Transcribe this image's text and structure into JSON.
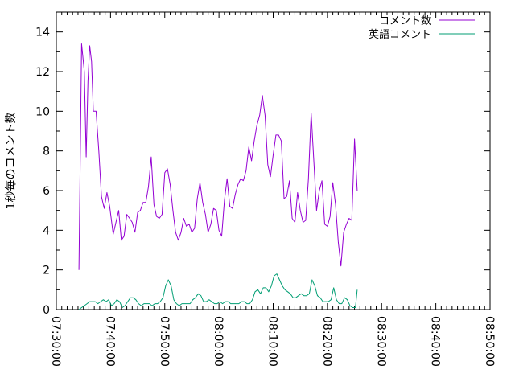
{
  "chart_data": {
    "type": "line",
    "ylabel": "1秒毎のコメント数",
    "xlabel": "",
    "ylim": [
      0,
      15
    ],
    "y_ticks": [
      0,
      2,
      4,
      6,
      8,
      10,
      12,
      14
    ],
    "x_range": [
      "07:30:00",
      "08:50:00"
    ],
    "x_ticks": [
      "07:30:00",
      "07:40:00",
      "07:50:00",
      "08:00:00",
      "08:10:00",
      "08:20:00",
      "08:30:00",
      "08:40:00",
      "08:50:00"
    ],
    "legend_position": "top-right",
    "grid": false,
    "series": [
      {
        "name": "コメント数",
        "color": "#9400d3",
        "points": [
          [
            "07:34:10",
            2.0
          ],
          [
            "07:34:40",
            13.4
          ],
          [
            "07:35:10",
            12.0
          ],
          [
            "07:35:30",
            7.7
          ],
          [
            "07:35:50",
            11.5
          ],
          [
            "07:36:10",
            13.3
          ],
          [
            "07:36:30",
            12.5
          ],
          [
            "07:36:50",
            10.0
          ],
          [
            "07:37:20",
            10.0
          ],
          [
            "07:37:50",
            8.0
          ],
          [
            "07:38:20",
            5.7
          ],
          [
            "07:38:50",
            5.1
          ],
          [
            "07:39:20",
            5.9
          ],
          [
            "07:39:50",
            5.2
          ],
          [
            "07:40:30",
            3.8
          ],
          [
            "07:41:00",
            4.4
          ],
          [
            "07:41:30",
            5.0
          ],
          [
            "07:42:00",
            3.5
          ],
          [
            "07:42:30",
            3.7
          ],
          [
            "07:43:00",
            4.8
          ],
          [
            "07:43:30",
            4.6
          ],
          [
            "07:44:00",
            4.4
          ],
          [
            "07:44:30",
            3.9
          ],
          [
            "07:45:00",
            4.9
          ],
          [
            "07:45:30",
            5.0
          ],
          [
            "07:46:00",
            5.4
          ],
          [
            "07:46:30",
            5.4
          ],
          [
            "07:47:00",
            6.2
          ],
          [
            "07:47:30",
            7.7
          ],
          [
            "07:48:00",
            5.3
          ],
          [
            "07:48:30",
            4.7
          ],
          [
            "07:49:00",
            4.6
          ],
          [
            "07:49:30",
            4.8
          ],
          [
            "07:50:00",
            6.9
          ],
          [
            "07:50:30",
            7.1
          ],
          [
            "07:51:00",
            6.3
          ],
          [
            "07:51:30",
            5.0
          ],
          [
            "07:52:00",
            3.9
          ],
          [
            "07:52:30",
            3.5
          ],
          [
            "07:53:00",
            3.9
          ],
          [
            "07:53:30",
            4.6
          ],
          [
            "07:54:00",
            4.2
          ],
          [
            "07:54:30",
            4.3
          ],
          [
            "07:55:00",
            3.9
          ],
          [
            "07:55:30",
            4.1
          ],
          [
            "07:56:00",
            5.6
          ],
          [
            "07:56:30",
            6.4
          ],
          [
            "07:57:00",
            5.4
          ],
          [
            "07:57:30",
            4.8
          ],
          [
            "07:58:00",
            3.9
          ],
          [
            "07:58:30",
            4.3
          ],
          [
            "07:59:00",
            5.1
          ],
          [
            "07:59:30",
            5.0
          ],
          [
            "08:00:00",
            4.0
          ],
          [
            "08:00:30",
            3.7
          ],
          [
            "08:01:00",
            5.5
          ],
          [
            "08:01:30",
            6.6
          ],
          [
            "08:02:00",
            5.2
          ],
          [
            "08:02:30",
            5.1
          ],
          [
            "08:03:00",
            5.8
          ],
          [
            "08:03:30",
            6.3
          ],
          [
            "08:04:00",
            6.6
          ],
          [
            "08:04:30",
            6.5
          ],
          [
            "08:05:00",
            7.0
          ],
          [
            "08:05:30",
            8.2
          ],
          [
            "08:06:00",
            7.5
          ],
          [
            "08:06:30",
            8.5
          ],
          [
            "08:07:00",
            9.3
          ],
          [
            "08:07:30",
            9.8
          ],
          [
            "08:08:00",
            10.8
          ],
          [
            "08:08:30",
            9.8
          ],
          [
            "08:09:00",
            7.3
          ],
          [
            "08:09:30",
            6.7
          ],
          [
            "08:10:00",
            7.8
          ],
          [
            "08:10:30",
            8.8
          ],
          [
            "08:11:00",
            8.8
          ],
          [
            "08:11:30",
            8.5
          ],
          [
            "08:12:00",
            5.6
          ],
          [
            "08:12:30",
            5.7
          ],
          [
            "08:13:00",
            6.5
          ],
          [
            "08:13:30",
            4.6
          ],
          [
            "08:14:00",
            4.4
          ],
          [
            "08:14:30",
            5.9
          ],
          [
            "08:15:00",
            5.0
          ],
          [
            "08:15:30",
            4.4
          ],
          [
            "08:16:00",
            4.5
          ],
          [
            "08:16:30",
            6.6
          ],
          [
            "08:17:00",
            9.9
          ],
          [
            "08:17:30",
            7.5
          ],
          [
            "08:18:00",
            5.0
          ],
          [
            "08:18:30",
            6.0
          ],
          [
            "08:19:00",
            6.5
          ],
          [
            "08:19:30",
            4.3
          ],
          [
            "08:20:00",
            4.2
          ],
          [
            "08:20:30",
            4.7
          ],
          [
            "08:21:00",
            6.4
          ],
          [
            "08:21:30",
            5.3
          ],
          [
            "08:22:00",
            3.4
          ],
          [
            "08:22:30",
            2.2
          ],
          [
            "08:23:00",
            3.9
          ],
          [
            "08:23:30",
            4.3
          ],
          [
            "08:24:00",
            4.6
          ],
          [
            "08:24:30",
            4.5
          ],
          [
            "08:25:00",
            8.6
          ],
          [
            "08:25:30",
            6.0
          ]
        ]
      },
      {
        "name": "英語コメント",
        "color": "#009e73",
        "points": [
          [
            "07:34:10",
            0.0
          ],
          [
            "07:34:40",
            0.1
          ],
          [
            "07:35:10",
            0.2
          ],
          [
            "07:35:40",
            0.3
          ],
          [
            "07:36:10",
            0.4
          ],
          [
            "07:36:40",
            0.4
          ],
          [
            "07:37:10",
            0.4
          ],
          [
            "07:37:40",
            0.3
          ],
          [
            "07:38:10",
            0.4
          ],
          [
            "07:38:40",
            0.5
          ],
          [
            "07:39:10",
            0.4
          ],
          [
            "07:39:40",
            0.5
          ],
          [
            "07:40:10",
            0.2
          ],
          [
            "07:40:40",
            0.3
          ],
          [
            "07:41:10",
            0.5
          ],
          [
            "07:41:40",
            0.4
          ],
          [
            "07:42:10",
            0.1
          ],
          [
            "07:42:40",
            0.2
          ],
          [
            "07:43:10",
            0.4
          ],
          [
            "07:43:40",
            0.6
          ],
          [
            "07:44:10",
            0.6
          ],
          [
            "07:44:40",
            0.5
          ],
          [
            "07:45:10",
            0.3
          ],
          [
            "07:45:40",
            0.2
          ],
          [
            "07:46:10",
            0.3
          ],
          [
            "07:46:40",
            0.3
          ],
          [
            "07:47:10",
            0.3
          ],
          [
            "07:47:40",
            0.2
          ],
          [
            "07:48:10",
            0.3
          ],
          [
            "07:48:40",
            0.3
          ],
          [
            "07:49:10",
            0.4
          ],
          [
            "07:49:40",
            0.6
          ],
          [
            "07:50:10",
            1.2
          ],
          [
            "07:50:40",
            1.5
          ],
          [
            "07:51:10",
            1.2
          ],
          [
            "07:51:40",
            0.5
          ],
          [
            "07:52:10",
            0.3
          ],
          [
            "07:52:40",
            0.2
          ],
          [
            "07:53:10",
            0.3
          ],
          [
            "07:53:40",
            0.3
          ],
          [
            "07:54:10",
            0.3
          ],
          [
            "07:54:40",
            0.3
          ],
          [
            "07:55:10",
            0.5
          ],
          [
            "07:55:40",
            0.6
          ],
          [
            "07:56:10",
            0.8
          ],
          [
            "07:56:40",
            0.7
          ],
          [
            "07:57:10",
            0.4
          ],
          [
            "07:57:40",
            0.4
          ],
          [
            "07:58:10",
            0.5
          ],
          [
            "07:58:40",
            0.4
          ],
          [
            "07:59:10",
            0.3
          ],
          [
            "07:59:40",
            0.3
          ],
          [
            "08:00:10",
            0.4
          ],
          [
            "08:00:40",
            0.3
          ],
          [
            "08:01:10",
            0.4
          ],
          [
            "08:01:40",
            0.4
          ],
          [
            "08:02:10",
            0.3
          ],
          [
            "08:02:40",
            0.3
          ],
          [
            "08:03:10",
            0.3
          ],
          [
            "08:03:40",
            0.3
          ],
          [
            "08:04:10",
            0.4
          ],
          [
            "08:04:40",
            0.4
          ],
          [
            "08:05:10",
            0.3
          ],
          [
            "08:05:40",
            0.3
          ],
          [
            "08:06:10",
            0.5
          ],
          [
            "08:06:40",
            0.9
          ],
          [
            "08:07:10",
            1.0
          ],
          [
            "08:07:40",
            0.8
          ],
          [
            "08:08:10",
            1.1
          ],
          [
            "08:08:40",
            1.1
          ],
          [
            "08:09:10",
            0.9
          ],
          [
            "08:09:40",
            1.2
          ],
          [
            "08:10:10",
            1.7
          ],
          [
            "08:10:40",
            1.8
          ],
          [
            "08:11:10",
            1.5
          ],
          [
            "08:11:40",
            1.2
          ],
          [
            "08:12:10",
            1.0
          ],
          [
            "08:12:40",
            0.9
          ],
          [
            "08:13:10",
            0.8
          ],
          [
            "08:13:40",
            0.6
          ],
          [
            "08:14:10",
            0.6
          ],
          [
            "08:14:40",
            0.7
          ],
          [
            "08:15:10",
            0.8
          ],
          [
            "08:15:40",
            0.7
          ],
          [
            "08:16:10",
            0.7
          ],
          [
            "08:16:40",
            0.8
          ],
          [
            "08:17:10",
            1.5
          ],
          [
            "08:17:40",
            1.2
          ],
          [
            "08:18:10",
            0.7
          ],
          [
            "08:18:40",
            0.6
          ],
          [
            "08:19:10",
            0.4
          ],
          [
            "08:19:40",
            0.4
          ],
          [
            "08:20:10",
            0.4
          ],
          [
            "08:20:40",
            0.5
          ],
          [
            "08:21:10",
            1.1
          ],
          [
            "08:21:40",
            0.5
          ],
          [
            "08:22:10",
            0.3
          ],
          [
            "08:22:40",
            0.3
          ],
          [
            "08:23:10",
            0.6
          ],
          [
            "08:23:40",
            0.5
          ],
          [
            "08:24:10",
            0.2
          ],
          [
            "08:24:40",
            0.1
          ],
          [
            "08:25:10",
            0.1
          ],
          [
            "08:25:30",
            1.0
          ]
        ]
      }
    ]
  }
}
